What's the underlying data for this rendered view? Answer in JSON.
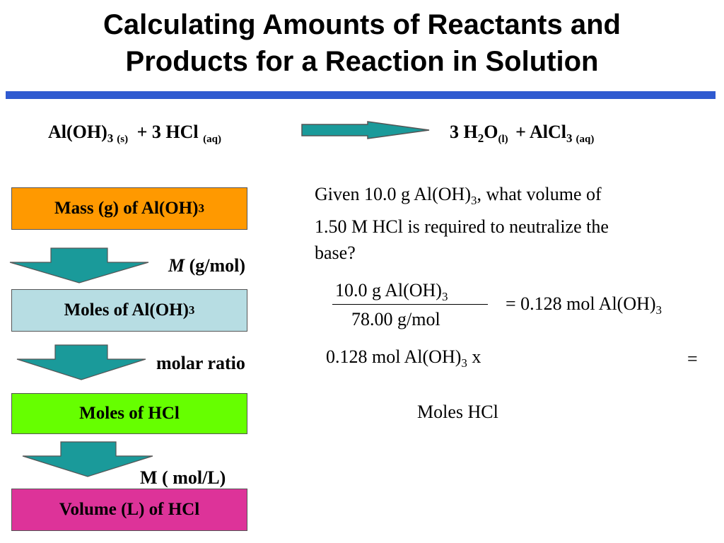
{
  "title": {
    "line1": "Calculating Amounts of Reactants and",
    "line2": "Products for a Reaction in Solution"
  },
  "equation": {
    "reactant1": "Al(OH)",
    "reactant1_sub": "3",
    "reactant1_state": "(s)",
    "plus1": "+ 3 HCl",
    "reactant2_state": "(aq)",
    "product1": "3 H",
    "product1_sub": "2",
    "product1_o": "O",
    "product1_state": "(l)",
    "plus2": "+ AlCl",
    "product2_sub": "3",
    "product2_state": "(aq)"
  },
  "flow": {
    "box1": {
      "label": "Mass (g) of Al(OH)",
      "sub": "3",
      "color": "#ff9900"
    },
    "conv1": {
      "italic": "M",
      "rest": " (g/mol)"
    },
    "box2": {
      "label": "Moles of Al(OH)",
      "sub": "3",
      "color": "#b7dde3"
    },
    "conv2": "molar ratio",
    "box3": {
      "label": "Moles of HCl",
      "color": "#66ff00"
    },
    "conv3": "M ( mol/L)",
    "box4": {
      "label": "Volume (L) of HCl",
      "color": "#dd3399"
    },
    "arrow_color": "#1a9a9a"
  },
  "problem": {
    "line1_a": "Given 10.0 g Al(OH)",
    "line1_sub": "3",
    "line1_b": ", what volume of",
    "line2": "1.50 M HCl is required to neutralize the",
    "line3": "base?"
  },
  "calc": {
    "numerator": "10.0 g Al(OH)",
    "numerator_sub": "3",
    "denominator": "78.00 g/mol",
    "result": "= 0.128 mol Al(OH)",
    "result_sub": "3",
    "step2": "0.128 mol Al(OH)",
    "step2_sub": "3",
    "step2_x": " x",
    "step2_eq": "=",
    "moles_label": "Moles HCl"
  }
}
